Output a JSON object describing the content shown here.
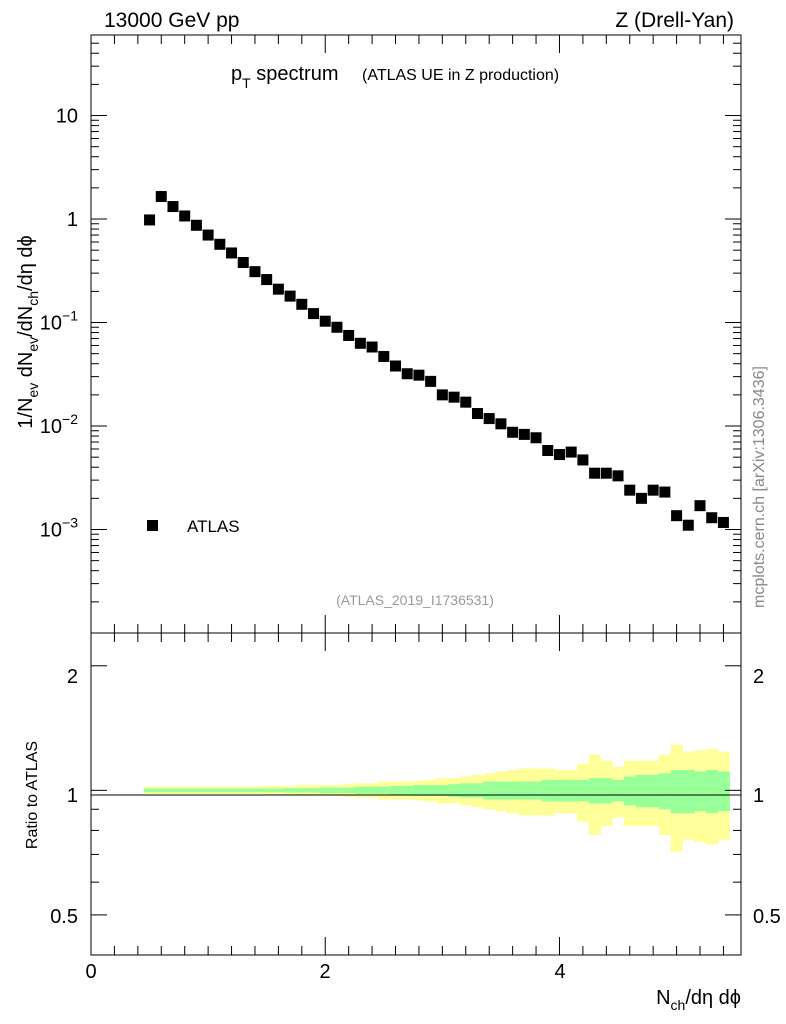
{
  "header": {
    "energy": "13000 GeV pp",
    "process": "Z (Drell-Yan)"
  },
  "plot_title": {
    "main_p": "p",
    "main_sub": "T",
    "main_rest": " spectrum",
    "detail": "(ATLAS UE in Z production)"
  },
  "watermark": "mcplots.cern.ch [arXiv:1306.3436]",
  "analysis_id": "(ATLAS_2019_I1736531)",
  "legend": {
    "label": "ATLAS"
  },
  "y_label": {
    "t1": "1/N",
    "s1": "ev",
    "t2": " dN",
    "s2": "ev",
    "t3": "/dN",
    "s3": "ch",
    "t4": "/dη dϕ"
  },
  "x_label": {
    "t1": "N",
    "s1": "ch",
    "t2": "/dη dϕ"
  },
  "ratio_label": "Ratio to ATLAS",
  "top_ticks": [
    {
      "v": 10,
      "base": "10",
      "exp": ""
    },
    {
      "v": 1,
      "base": "1",
      "exp": ""
    },
    {
      "v": 0.1,
      "base": "10",
      "exp": "−1"
    },
    {
      "v": 0.01,
      "base": "10",
      "exp": "−2"
    },
    {
      "v": 0.001,
      "base": "10",
      "exp": "−3"
    }
  ],
  "x_ticks": [
    "0",
    "2",
    "4"
  ],
  "ratio_ticks_left": [
    "2",
    "1",
    "0.5"
  ],
  "ratio_ticks_right": [
    "2",
    "1",
    "0.5"
  ],
  "chart_data": {
    "type": "scatter",
    "y_scale": "log",
    "xlim": [
      0,
      5.55
    ],
    "ylim": [
      0.0001,
      60
    ],
    "ratio_ylim": [
      0.4,
      2.4
    ],
    "series": [
      {
        "name": "ATLAS",
        "x": [
          0.5,
          0.6,
          0.7,
          0.8,
          0.9,
          1.0,
          1.1,
          1.2,
          1.3,
          1.4,
          1.5,
          1.6,
          1.7,
          1.8,
          1.9,
          2.0,
          2.1,
          2.2,
          2.3,
          2.4,
          2.5,
          2.6,
          2.7,
          2.8,
          2.9,
          3.0,
          3.1,
          3.2,
          3.3,
          3.4,
          3.5,
          3.6,
          3.7,
          3.8,
          3.9,
          4.0,
          4.1,
          4.2,
          4.3,
          4.4,
          4.5,
          4.6,
          4.7,
          4.8,
          4.9,
          5.0,
          5.1,
          5.2,
          5.3,
          5.4
        ],
        "y": [
          0.98,
          1.65,
          1.32,
          1.07,
          0.87,
          0.7,
          0.57,
          0.47,
          0.38,
          0.31,
          0.26,
          0.21,
          0.18,
          0.15,
          0.122,
          0.103,
          0.09,
          0.075,
          0.063,
          0.058,
          0.047,
          0.038,
          0.032,
          0.031,
          0.027,
          0.02,
          0.019,
          0.017,
          0.0132,
          0.0118,
          0.0105,
          0.0087,
          0.0083,
          0.0077,
          0.0058,
          0.0053,
          0.0056,
          0.0047,
          0.0035,
          0.0035,
          0.0033,
          0.0024,
          0.002,
          0.0024,
          0.0023,
          0.00136,
          0.0011,
          0.0017,
          0.0013,
          0.00117
        ]
      }
    ],
    "ratio_bands": {
      "x_edges": [
        0.45,
        0.55,
        0.65,
        0.75,
        0.85,
        0.95,
        1.05,
        1.15,
        1.25,
        1.35,
        1.45,
        1.55,
        1.65,
        1.75,
        1.85,
        1.95,
        2.05,
        2.15,
        2.25,
        2.35,
        2.45,
        2.55,
        2.65,
        2.75,
        2.85,
        2.95,
        3.05,
        3.15,
        3.25,
        3.35,
        3.45,
        3.55,
        3.65,
        3.75,
        3.85,
        3.95,
        4.05,
        4.15,
        4.25,
        4.35,
        4.45,
        4.55,
        4.65,
        4.75,
        4.85,
        4.95,
        5.05,
        5.15,
        5.25,
        5.35,
        5.45
      ],
      "yellow_half": [
        0.02,
        0.02,
        0.02,
        0.02,
        0.02,
        0.02,
        0.02,
        0.02,
        0.02,
        0.02,
        0.025,
        0.025,
        0.025,
        0.03,
        0.03,
        0.03,
        0.03,
        0.035,
        0.04,
        0.04,
        0.05,
        0.05,
        0.05,
        0.055,
        0.06,
        0.07,
        0.07,
        0.08,
        0.09,
        0.1,
        0.11,
        0.12,
        0.13,
        0.13,
        0.13,
        0.12,
        0.12,
        0.16,
        0.22,
        0.18,
        0.14,
        0.18,
        0.18,
        0.18,
        0.22,
        0.29,
        0.24,
        0.25,
        0.26,
        0.24
      ],
      "green_half": [
        0.01,
        0.01,
        0.01,
        0.01,
        0.01,
        0.01,
        0.01,
        0.01,
        0.01,
        0.01,
        0.01,
        0.01,
        0.012,
        0.012,
        0.012,
        0.015,
        0.015,
        0.015,
        0.02,
        0.02,
        0.02,
        0.025,
        0.025,
        0.03,
        0.03,
        0.03,
        0.035,
        0.04,
        0.04,
        0.05,
        0.05,
        0.05,
        0.05,
        0.05,
        0.06,
        0.06,
        0.06,
        0.06,
        0.07,
        0.07,
        0.06,
        0.08,
        0.09,
        0.09,
        0.1,
        0.12,
        0.12,
        0.11,
        0.12,
        0.11
      ]
    }
  }
}
